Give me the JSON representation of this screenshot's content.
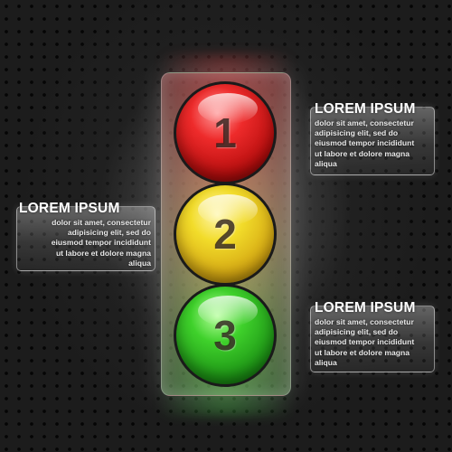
{
  "lamps": [
    {
      "number": "1",
      "color": "#ee2b2b"
    },
    {
      "number": "2",
      "color": "#f2dc2a"
    },
    {
      "number": "3",
      "color": "#3fd12b"
    }
  ],
  "panels": [
    {
      "title": "LOREM IPSUM",
      "lines": [
        "dolor sit amet, consectetur",
        "adipisicing elit, sed do",
        "eiusmod tempor incididunt",
        "ut labore et dolore magna",
        "aliqua"
      ]
    },
    {
      "title": "LOREM IPSUM",
      "lines": [
        "dolor sit amet, consectetur",
        "adipisicing elit, sed do",
        "eiusmod tempor incididunt",
        "ut labore et dolore magna",
        "aliqua"
      ]
    },
    {
      "title": "LOREM IPSUM",
      "lines": [
        "dolor sit amet, consectetur",
        "adipisicing elit, sed do",
        "eiusmod tempor incididunt",
        "ut labore et dolore magna",
        "aliqua"
      ]
    }
  ]
}
